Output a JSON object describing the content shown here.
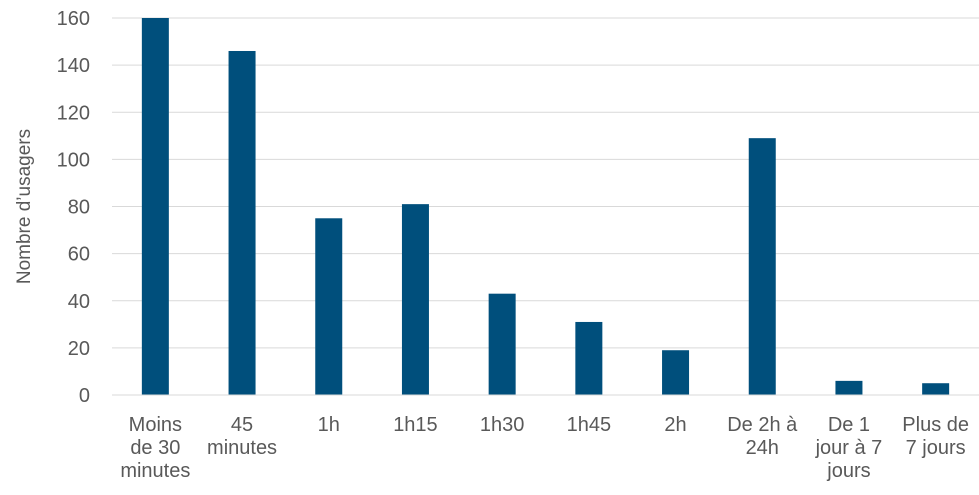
{
  "chart_data": {
    "type": "bar",
    "ylabel": "Nombre d’usagers",
    "xlabel": "",
    "ylim": [
      0,
      160
    ],
    "yticks": [
      0,
      20,
      40,
      60,
      80,
      100,
      120,
      140,
      160
    ],
    "grid": true,
    "legend": "none",
    "bar_color": "#004f7c",
    "categories": [
      "Moins de 30 minutes",
      "45 minutes",
      "1h",
      "1h15",
      "1h30",
      "1h45",
      "2h",
      "De 2h à 24h",
      "De 1 jour à 7 jours",
      "Plus de 7 jours"
    ],
    "category_lines": [
      [
        "Moins",
        "de 30",
        "minutes"
      ],
      [
        "45",
        "minutes"
      ],
      [
        "1h"
      ],
      [
        "1h15"
      ],
      [
        "1h30"
      ],
      [
        "1h45"
      ],
      [
        "2h"
      ],
      [
        "De 2h à",
        "24h"
      ],
      [
        "De 1",
        "jour à 7",
        "jours"
      ],
      [
        "Plus de",
        "7 jours"
      ]
    ],
    "values": [
      160,
      146,
      75,
      81,
      43,
      31,
      19,
      109,
      6,
      5
    ]
  }
}
